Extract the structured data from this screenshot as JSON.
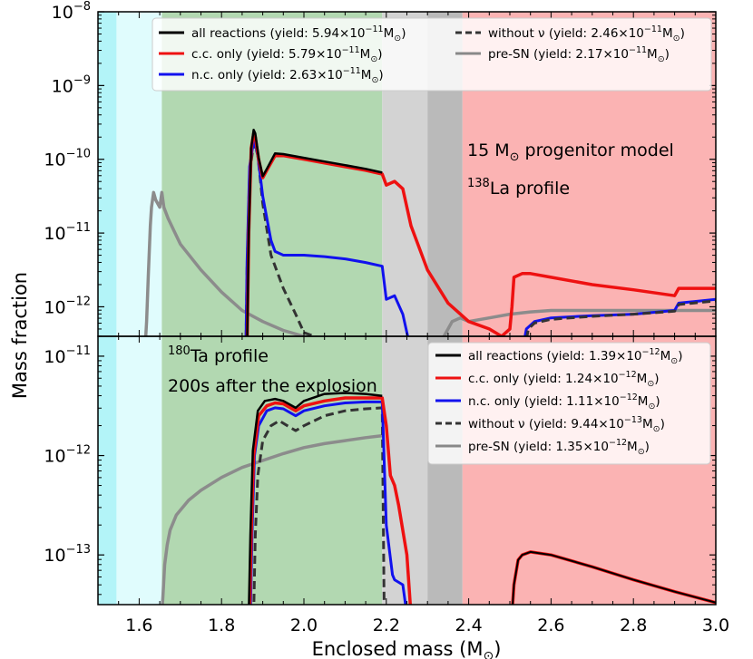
{
  "chart_data": {
    "type": "line",
    "shared_x": {
      "label_parts": {
        "text": "Enclosed mass (M",
        "sub": "⊙",
        "close": ")"
      },
      "lim": [
        1.5,
        3.0
      ],
      "ticks": [
        1.6,
        1.8,
        2.0,
        2.2,
        2.4,
        2.6,
        2.8,
        3.0
      ],
      "tick_labels": [
        "1.6",
        "1.8",
        "2.0",
        "2.2",
        "2.4",
        "2.6",
        "2.8",
        "3.0"
      ]
    },
    "ylabel": "Mass fraction",
    "regions": [
      {
        "name": "cyan-band",
        "x": [
          1.5,
          1.545
        ],
        "color": "#b3f4f8"
      },
      {
        "name": "light-cyan-band",
        "x": [
          1.545,
          1.655
        ],
        "color": "#e0fcfd"
      },
      {
        "name": "green-band",
        "x": [
          1.655,
          2.19
        ],
        "color": "#b2d8b1"
      },
      {
        "name": "light-gray-band",
        "x": [
          2.19,
          2.3
        ],
        "color": "#d3d3d3"
      },
      {
        "name": "dark-gray-band",
        "x": [
          2.3,
          2.385
        ],
        "color": "#bababa"
      },
      {
        "name": "pink-band",
        "x": [
          2.385,
          3.0
        ],
        "color": "#fbb3b3"
      }
    ],
    "panels": [
      {
        "name": "top",
        "yscale": "log",
        "ylim_exp": [
          -12.4,
          -8
        ],
        "ytick_exps": [
          -12,
          -11,
          -10,
          -9,
          -8
        ],
        "annotations": [
          {
            "text": "15 M",
            "sub": "⊙",
            "rest": " progenitor model"
          },
          {
            "sup": "138",
            "text": "La profile"
          }
        ],
        "legend": [
          {
            "label_main": "all reactions (yield: 5.94×10",
            "exp": "−11",
            "unit": "M",
            "sub": "⊙",
            "close": ")",
            "color": "#000000",
            "dash": "solid"
          },
          {
            "label_main": "c.c. only (yield: 5.79×10",
            "exp": "−11",
            "unit": "M",
            "sub": "⊙",
            "close": ")",
            "color": "#ee1111",
            "dash": "solid"
          },
          {
            "label_main": "n.c. only (yield: 2.63×10",
            "exp": "−11",
            "unit": "M",
            "sub": "⊙",
            "close": ")",
            "color": "#1111ee",
            "dash": "solid"
          },
          {
            "label_main": "without ν (yield: 2.46×10",
            "exp": "−11",
            "unit": "M",
            "sub": "⊙",
            "close": ")",
            "color": "#333333",
            "dash": "dashed"
          },
          {
            "label_main": "pre-SN (yield: 2.17×10",
            "exp": "−11",
            "unit": "M",
            "sub": "⊙",
            "close": ")",
            "color": "#888888",
            "dash": "solid"
          }
        ],
        "series": [
          {
            "name": "pre-SN",
            "color": "#8c8c8c",
            "dash": "solid",
            "width": 3.5,
            "x": [
              1.615,
              1.618,
              1.622,
              1.627,
              1.63,
              1.635,
              1.64,
              1.645,
              1.65,
              1.655,
              1.66,
              1.67,
              1.7,
              1.75,
              1.8,
              1.85,
              1.9,
              1.95,
              2.0,
              2.05,
              2.1,
              2.15,
              2.19,
              2.25,
              2.3,
              2.34,
              2.36,
              2.38,
              2.4,
              2.45,
              2.5,
              2.55,
              2.6,
              2.7,
              2.8,
              2.9,
              3.0
            ],
            "y": [
              -12.5,
              -12.2,
              -11.6,
              -10.9,
              -10.65,
              -10.45,
              -10.55,
              -10.6,
              -10.65,
              -10.45,
              -10.65,
              -10.8,
              -11.15,
              -11.5,
              -11.8,
              -12.05,
              -12.2,
              -12.32,
              -12.4,
              -12.45,
              -12.47,
              -12.49,
              -12.5,
              -12.55,
              -12.6,
              -12.4,
              -12.2,
              -12.15,
              -12.2,
              -12.15,
              -12.1,
              -12.07,
              -12.05,
              -12.05,
              -12.05,
              -12.05,
              -12.05
            ]
          },
          {
            "name": "without nu",
            "color": "#333333",
            "dash": "dashed",
            "width": 3,
            "x": [
              1.859,
              1.862,
              1.868,
              1.875,
              1.88,
              1.888,
              1.9,
              1.92,
              1.95,
              1.98,
              2.0,
              2.05,
              2.1,
              2.15,
              2.19
            ],
            "y": [
              -12.6,
              -11.5,
              -10.2,
              -9.9,
              -9.78,
              -9.95,
              -10.6,
              -11.3,
              -11.75,
              -12.1,
              -12.35,
              -12.45,
              -12.47,
              -12.47,
              -12.47
            ]
          },
          {
            "name": "n.c. only",
            "color": "#1111ee",
            "dash": "solid",
            "width": 3,
            "x": [
              1.859,
              1.862,
              1.868,
              1.875,
              1.88,
              1.888,
              1.9,
              1.92,
              1.93,
              1.95,
              2.0,
              2.05,
              2.1,
              2.15,
              2.19,
              2.2,
              2.22,
              2.24,
              2.26
            ],
            "y": [
              -12.6,
              -11.4,
              -10.1,
              -9.85,
              -9.75,
              -9.95,
              -10.5,
              -11.1,
              -11.25,
              -11.3,
              -11.3,
              -11.32,
              -11.35,
              -11.4,
              -11.45,
              -11.9,
              -11.85,
              -12.1,
              -12.6
            ]
          },
          {
            "name": "c.c. only",
            "color": "#ee1111",
            "dash": "solid",
            "width": 3.5,
            "x": [
              1.862,
              1.866,
              1.872,
              1.878,
              1.882,
              1.89,
              1.9,
              1.91,
              1.93,
              1.95,
              2.0,
              2.05,
              2.1,
              2.15,
              2.19,
              2.2,
              2.22,
              2.24,
              2.26,
              2.3,
              2.35,
              2.4,
              2.45,
              2.48,
              2.5,
              2.505,
              2.51,
              2.53,
              2.55,
              2.6,
              2.7,
              2.8,
              2.9,
              2.91,
              3.0
            ],
            "y": [
              -12.6,
              -11.0,
              -9.85,
              -9.65,
              -9.7,
              -10.0,
              -10.25,
              -10.15,
              -9.95,
              -9.95,
              -10.0,
              -10.05,
              -10.1,
              -10.15,
              -10.2,
              -10.35,
              -10.3,
              -10.4,
              -10.9,
              -11.5,
              -11.95,
              -12.2,
              -12.3,
              -12.4,
              -12.3,
              -12.0,
              -11.6,
              -11.55,
              -11.55,
              -11.6,
              -11.7,
              -11.77,
              -11.85,
              -11.75,
              -11.75
            ]
          },
          {
            "name": "all reactions",
            "color": "#000000",
            "dash": "solid",
            "width": 2.5,
            "x": [
              1.862,
              1.866,
              1.872,
              1.878,
              1.882,
              1.89,
              1.9,
              1.91,
              1.93,
              1.95,
              2.0,
              2.05,
              2.1,
              2.15,
              2.19
            ],
            "y": [
              -12.6,
              -11.0,
              -9.85,
              -9.6,
              -9.65,
              -9.98,
              -10.23,
              -10.13,
              -9.92,
              -9.93,
              -9.98,
              -10.03,
              -10.08,
              -10.13,
              -10.18
            ]
          },
          {
            "name": "n.c. only outer",
            "color": "#1111ee",
            "dash": "solid",
            "width": 3,
            "x": [
              2.53,
              2.54,
              2.56,
              2.6,
              2.7,
              2.8,
              2.9,
              2.91,
              3.0
            ],
            "y": [
              -12.6,
              -12.3,
              -12.2,
              -12.15,
              -12.12,
              -12.1,
              -12.05,
              -11.95,
              -11.9
            ]
          },
          {
            "name": "without nu outer",
            "color": "#333333",
            "dash": "dashed",
            "width": 3,
            "x": [
              2.535,
              2.545,
              2.56,
              2.6,
              2.7,
              2.8,
              2.9,
              2.91,
              3.0
            ],
            "y": [
              -12.6,
              -12.3,
              -12.22,
              -12.17,
              -12.13,
              -12.1,
              -12.06,
              -11.97,
              -11.92
            ]
          }
        ]
      },
      {
        "name": "bottom",
        "yscale": "log",
        "ylim_exp": [
          -13.5,
          -10.8
        ],
        "ytick_exps": [
          -13,
          -12,
          -11
        ],
        "annotations": [
          {
            "sup": "180",
            "text": "Ta profile"
          },
          {
            "text": "200s after the explosion"
          }
        ],
        "legend": [
          {
            "label_main": "all reactions (yield: 1.39×10",
            "exp": "−12",
            "unit": "M",
            "sub": "⊙",
            "close": ")",
            "color": "#000000",
            "dash": "solid"
          },
          {
            "label_main": "c.c. only (yield: 1.24×10",
            "exp": "−12",
            "unit": "M",
            "sub": "⊙",
            "close": ")",
            "color": "#ee1111",
            "dash": "solid"
          },
          {
            "label_main": "n.c. only (yield: 1.11×10",
            "exp": "−12",
            "unit": "M",
            "sub": "⊙",
            "close": ")",
            "color": "#1111ee",
            "dash": "solid"
          },
          {
            "label_main": "without ν (yield: 9.44×10",
            "exp": "−13",
            "unit": "M",
            "sub": "⊙",
            "close": ")",
            "color": "#333333",
            "dash": "dashed"
          },
          {
            "label_main": "pre-SN (yield: 1.35×10",
            "exp": "−12",
            "unit": "M",
            "sub": "⊙",
            "close": ")",
            "color": "#888888",
            "dash": "solid"
          }
        ],
        "series": [
          {
            "name": "pre-SN",
            "color": "#8c8c8c",
            "dash": "solid",
            "width": 3.5,
            "x": [
              1.655,
              1.658,
              1.662,
              1.668,
              1.675,
              1.69,
              1.72,
              1.75,
              1.8,
              1.85,
              1.9,
              1.95,
              2.0,
              2.05,
              2.1,
              2.15,
              2.19
            ],
            "y": [
              -13.6,
              -13.4,
              -13.1,
              -12.9,
              -12.75,
              -12.6,
              -12.45,
              -12.35,
              -12.22,
              -12.12,
              -12.05,
              -11.98,
              -11.92,
              -11.88,
              -11.85,
              -11.82,
              -11.8
            ]
          },
          {
            "name": "without nu",
            "color": "#333333",
            "dash": "dashed",
            "width": 3,
            "x": [
              1.878,
              1.882,
              1.888,
              1.9,
              1.92,
              1.94,
              1.96,
              1.98,
              2.0,
              2.05,
              2.1,
              2.15,
              2.19,
              2.195
            ],
            "y": [
              -13.6,
              -12.8,
              -12.2,
              -11.85,
              -11.7,
              -11.65,
              -11.7,
              -11.75,
              -11.7,
              -11.6,
              -11.55,
              -11.53,
              -11.52,
              -13.6
            ]
          },
          {
            "name": "n.c. only",
            "color": "#1111ee",
            "dash": "solid",
            "width": 3,
            "x": [
              1.87,
              1.874,
              1.88,
              1.89,
              1.91,
              1.93,
              1.95,
              1.98,
              2.0,
              2.05,
              2.1,
              2.15,
              2.19,
              2.2,
              2.215,
              2.22,
              2.24,
              2.25
            ],
            "y": [
              -13.6,
              -12.8,
              -12.0,
              -11.7,
              -11.55,
              -11.52,
              -11.53,
              -11.6,
              -11.55,
              -11.5,
              -11.47,
              -11.46,
              -11.46,
              -12.7,
              -13.2,
              -13.25,
              -13.3,
              -13.6
            ]
          },
          {
            "name": "c.c. only",
            "color": "#ee1111",
            "dash": "solid",
            "width": 3.5,
            "x": [
              1.868,
              1.872,
              1.878,
              1.89,
              1.91,
              1.93,
              1.95,
              1.98,
              2.0,
              2.05,
              2.1,
              2.15,
              2.19,
              2.2,
              2.21,
              2.22,
              2.23,
              2.25,
              2.26
            ],
            "y": [
              -13.6,
              -12.8,
              -12.0,
              -11.6,
              -11.5,
              -11.47,
              -11.48,
              -11.55,
              -11.5,
              -11.45,
              -11.42,
              -11.42,
              -11.42,
              -11.7,
              -12.2,
              -12.3,
              -12.5,
              -13.0,
              -13.6
            ]
          },
          {
            "name": "all reactions",
            "color": "#000000",
            "dash": "solid",
            "width": 2.5,
            "x": [
              1.866,
              1.87,
              1.876,
              1.888,
              1.905,
              1.93,
              1.95,
              1.98,
              2.0,
              2.05,
              2.1,
              2.15,
              2.19
            ],
            "y": [
              -13.6,
              -12.8,
              -11.95,
              -11.55,
              -11.45,
              -11.43,
              -11.45,
              -11.52,
              -11.45,
              -11.38,
              -11.37,
              -11.38,
              -11.4
            ]
          },
          {
            "name": "c.c. only outer",
            "color": "#ee1111",
            "dash": "solid",
            "width": 3.5,
            "x": [
              2.505,
              2.51,
              2.52,
              2.53,
              2.55,
              2.6,
              2.7,
              2.8,
              2.9,
              3.0
            ],
            "y": [
              -13.6,
              -13.3,
              -13.05,
              -13.0,
              -12.97,
              -13.0,
              -13.12,
              -13.25,
              -13.37,
              -13.48
            ]
          },
          {
            "name": "all reactions outer",
            "color": "#000000",
            "dash": "solid",
            "width": 2,
            "x": [
              2.505,
              2.51,
              2.52,
              2.53,
              2.55,
              2.6,
              2.7,
              2.8,
              2.9,
              3.0
            ],
            "y": [
              -13.6,
              -13.3,
              -13.05,
              -13.0,
              -12.97,
              -13.0,
              -13.12,
              -13.25,
              -13.37,
              -13.48
            ]
          }
        ]
      }
    ]
  }
}
